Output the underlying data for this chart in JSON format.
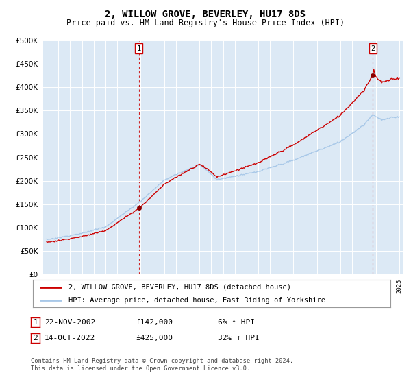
{
  "title": "2, WILLOW GROVE, BEVERLEY, HU17 8DS",
  "subtitle": "Price paid vs. HM Land Registry's House Price Index (HPI)",
  "legend_line1": "2, WILLOW GROVE, BEVERLEY, HU17 8DS (detached house)",
  "legend_line2": "HPI: Average price, detached house, East Riding of Yorkshire",
  "footnote": "Contains HM Land Registry data © Crown copyright and database right 2024.\nThis data is licensed under the Open Government Licence v3.0.",
  "sale1_date": "22-NOV-2002",
  "sale1_price": 142000,
  "sale1_hpi_pct": "6%",
  "sale1_label": "1",
  "sale2_date": "14-OCT-2022",
  "sale2_price": 425000,
  "sale2_hpi_pct": "32%",
  "sale2_label": "2",
  "ylim": [
    0,
    500000
  ],
  "yticks": [
    0,
    50000,
    100000,
    150000,
    200000,
    250000,
    300000,
    350000,
    400000,
    450000,
    500000
  ],
  "background_color": "#dce9f5",
  "grid_color": "#ffffff",
  "red_line_color": "#cc0000",
  "blue_line_color": "#a8c8e8",
  "sale_marker_color": "#880000",
  "vline_color": "#cc0000",
  "box_edge_color": "#cc0000",
  "box_face_color": "#ffffff"
}
